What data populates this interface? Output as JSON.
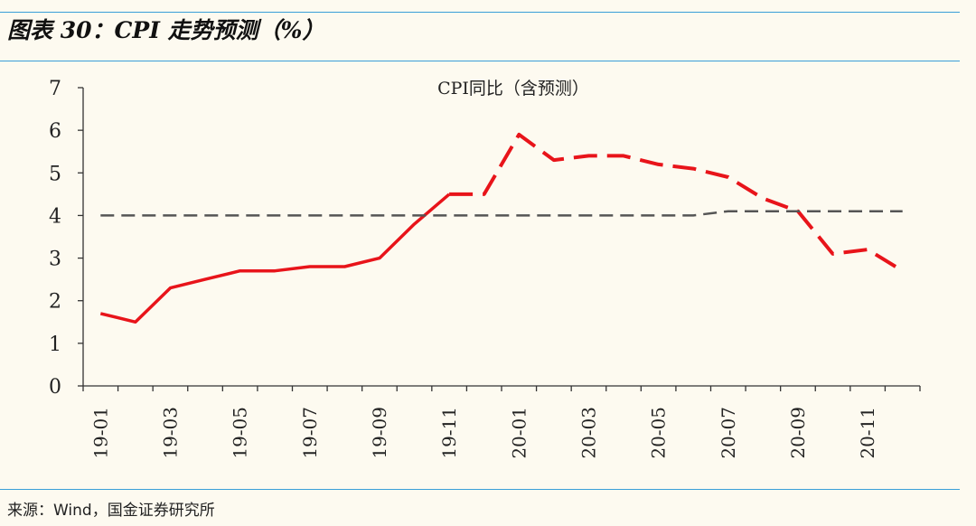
{
  "figure": {
    "title": "图表 30：CPI 走势预测（%）",
    "source": "来源：Wind，国金证券研究所"
  },
  "chart_data": {
    "type": "line",
    "title": "CPI同比（含预测）",
    "xlabel": "",
    "ylabel": "",
    "ylim": [
      0,
      7
    ],
    "y_ticks": [
      "0",
      "1",
      "2",
      "3",
      "4",
      "5",
      "6",
      "7"
    ],
    "x_tick_labels": [
      "19-01",
      "19-03",
      "19-05",
      "19-07",
      "19-09",
      "19-11",
      "20-01",
      "20-03",
      "20-05",
      "20-07",
      "20-09",
      "20-11"
    ],
    "x": [
      "19-01",
      "19-02",
      "19-03",
      "19-04",
      "19-05",
      "19-06",
      "19-07",
      "19-08",
      "19-09",
      "19-10",
      "19-11",
      "19-12",
      "20-01",
      "20-02",
      "20-03",
      "20-04",
      "20-05",
      "20-06",
      "20-07",
      "20-08",
      "20-09",
      "20-10",
      "20-11",
      "20-12"
    ],
    "series": [
      {
        "style": "solid",
        "color": "#e8141a",
        "values": [
          1.7,
          1.5,
          2.3,
          2.5,
          2.7,
          2.7,
          2.8,
          2.8,
          3.0,
          3.8,
          4.5,
          null,
          null,
          null,
          null,
          null,
          null,
          null,
          null,
          null,
          null,
          null,
          null,
          null
        ]
      },
      {
        "style": "long-dash",
        "color": "#e8141a",
        "values": [
          null,
          null,
          null,
          null,
          null,
          null,
          null,
          null,
          null,
          null,
          4.5,
          4.5,
          5.9,
          5.3,
          5.4,
          5.4,
          5.2,
          5.1,
          4.9,
          4.4,
          4.1,
          3.1,
          3.2,
          2.7
        ]
      },
      {
        "style": "dashed",
        "color": "#555555",
        "values": [
          4.0,
          4.0,
          4.0,
          4.0,
          4.0,
          4.0,
          4.0,
          4.0,
          4.0,
          4.0,
          4.0,
          4.0,
          4.0,
          4.0,
          4.0,
          4.0,
          4.0,
          4.0,
          4.1,
          4.1,
          4.1,
          4.1,
          4.1,
          4.1
        ]
      }
    ]
  }
}
